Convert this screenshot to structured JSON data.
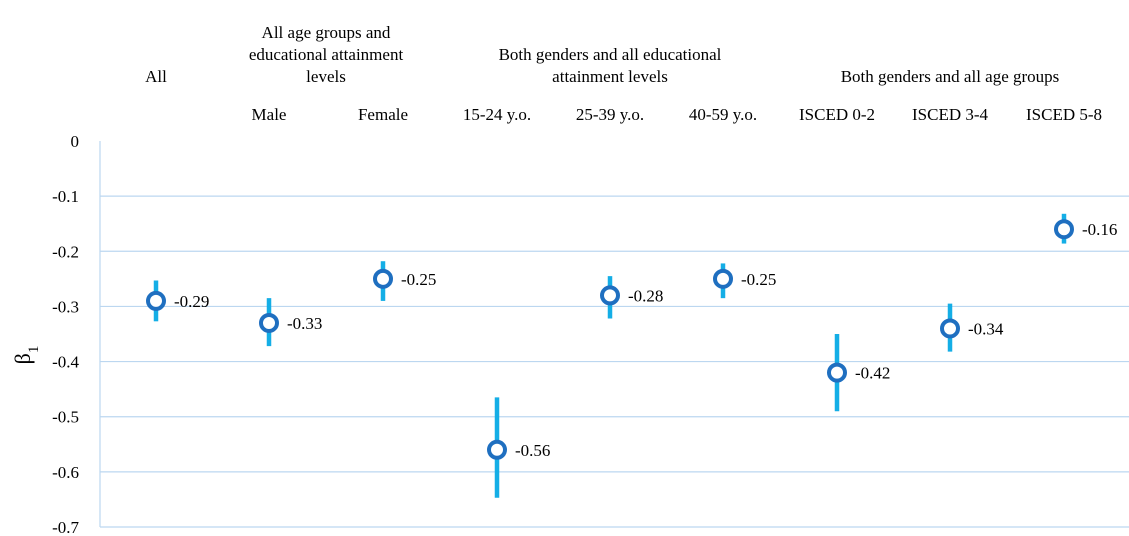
{
  "chart_data": {
    "type": "scatter",
    "title": "",
    "xlabel": "",
    "ylabel": "β1",
    "ylim": [
      -0.7,
      0
    ],
    "yticks": [
      0,
      -0.1,
      -0.2,
      -0.3,
      -0.4,
      -0.5,
      -0.6,
      -0.7
    ],
    "ytick_labels": [
      "0",
      "-0.1",
      "-0.2",
      "-0.3",
      "-0.4",
      "-0.5",
      "-0.6",
      "-0.7"
    ],
    "grid": true,
    "groups": [
      {
        "label": "All",
        "categories": [
          "All"
        ]
      },
      {
        "label": "All age groups and educational attainment levels",
        "lines": [
          "All age groups and",
          "educational attainment",
          "levels"
        ],
        "categories": [
          "Male",
          "Female"
        ]
      },
      {
        "label": "Both genders and all educational attainment levels",
        "lines": [
          "Both genders and all educational",
          "attainment levels"
        ],
        "categories": [
          "15-24 y.o.",
          "25-39 y.o.",
          "40-59 y.o."
        ]
      },
      {
        "label": "Both genders and all age groups",
        "lines": [
          "Both genders and all age groups"
        ],
        "categories": [
          "ISCED 0-2",
          "ISCED 3-4",
          "ISCED 5-8"
        ]
      }
    ],
    "points": [
      {
        "category": "",
        "value": -0.29,
        "label": "-0.29",
        "ci": [
          -0.327,
          -0.253
        ]
      },
      {
        "category": "Male",
        "value": -0.33,
        "label": "-0.33",
        "ci": [
          -0.372,
          -0.285
        ]
      },
      {
        "category": "Female",
        "value": -0.25,
        "label": "-0.25",
        "ci": [
          -0.29,
          -0.218
        ]
      },
      {
        "category": "15-24 y.o.",
        "value": -0.56,
        "label": "-0.56",
        "ci": [
          -0.647,
          -0.465
        ]
      },
      {
        "category": "25-39 y.o.",
        "value": -0.28,
        "label": "-0.28",
        "ci": [
          -0.322,
          -0.245
        ]
      },
      {
        "category": "40-59 y.o.",
        "value": -0.25,
        "label": "-0.25",
        "ci": [
          -0.285,
          -0.222
        ]
      },
      {
        "category": "ISCED 0-2",
        "value": -0.42,
        "label": "-0.42",
        "ci": [
          -0.49,
          -0.35
        ]
      },
      {
        "category": "ISCED 3-4",
        "value": -0.34,
        "label": "-0.34",
        "ci": [
          -0.382,
          -0.295
        ]
      },
      {
        "category": "ISCED 5-8",
        "value": -0.16,
        "label": "-0.16",
        "ci": [
          -0.186,
          -0.132
        ]
      }
    ],
    "colors": {
      "marker_stroke": "#1f6fc0",
      "marker_fill": "#ffffff",
      "error_bar": "#14aee6",
      "gridline": "#bcd7f0",
      "axis": "#bcd7f0"
    }
  }
}
